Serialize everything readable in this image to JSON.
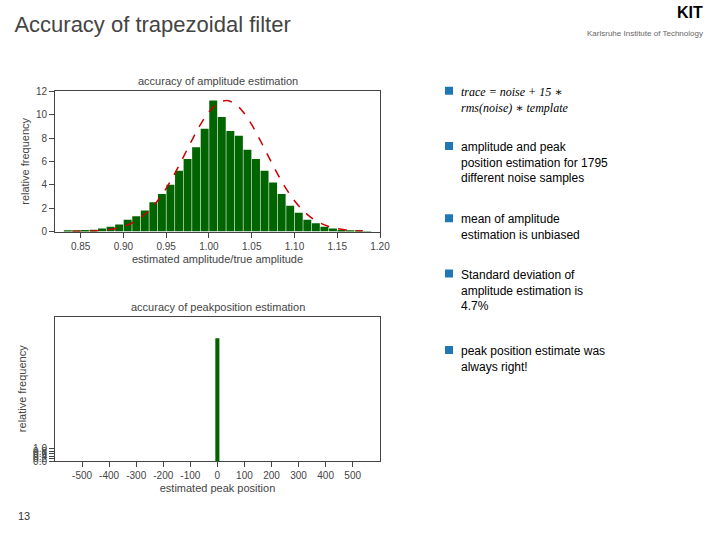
{
  "title": "Accuracy of trapezoidal filter",
  "annotations": [
    "trace = noise + 15 ∗\nrms(noise) ∗ template",
    "amplitude and peak\nposition estimation for 1795\ndifferent noise samples",
    "mean of amplitude\nestimation is unbiased",
    "Standard deviation of\namplitude estimation is\n4.7%",
    "peak position estimate was\nalways right!",
    "13",
    "KIT",
    "Karlsruhe Institute of Technology"
  ],
  "chart_data": [
    {
      "type": "bar",
      "title": "accuracy of amplitude estimation",
      "xlabel": "estimated amplitude/true amplitude",
      "ylabel": "relative frequency",
      "x": [
        0.835,
        0.845,
        0.855,
        0.865,
        0.875,
        0.885,
        0.895,
        0.905,
        0.915,
        0.925,
        0.935,
        0.945,
        0.955,
        0.965,
        0.975,
        0.985,
        0.995,
        1.005,
        1.015,
        1.025,
        1.035,
        1.045,
        1.055,
        1.065,
        1.075,
        1.085,
        1.095,
        1.105,
        1.115,
        1.125,
        1.135,
        1.145,
        1.155,
        1.165,
        1.175,
        1.185
      ],
      "series": [
        {
          "type": "bar",
          "color": "#006400",
          "values": [
            0.05,
            0.08,
            0.12,
            0.15,
            0.25,
            0.4,
            0.6,
            1.0,
            1.3,
            1.8,
            2.5,
            3.2,
            4.0,
            5.2,
            6.2,
            7.2,
            8.8,
            11.2,
            9.8,
            8.6,
            8.2,
            7.0,
            6.2,
            5.2,
            4.2,
            3.2,
            2.2,
            1.6,
            1.0,
            0.7,
            0.4,
            0.25,
            0.12,
            0.08,
            0.05,
            0.02
          ]
        },
        {
          "type": "line",
          "line_style": "dashed",
          "color": "#cc0000",
          "x": [
            0.84,
            0.85,
            0.86,
            0.87,
            0.88,
            0.89,
            0.9,
            0.91,
            0.92,
            0.93,
            0.94,
            0.95,
            0.96,
            0.97,
            0.98,
            0.99,
            1.0,
            1.01,
            1.02,
            1.03,
            1.04,
            1.05,
            1.06,
            1.07,
            1.08,
            1.09,
            1.1,
            1.11,
            1.12,
            1.13,
            1.14,
            1.15,
            1.16,
            1.17,
            1.18
          ],
          "values": [
            0.007,
            0.016,
            0.034,
            0.069,
            0.133,
            0.244,
            0.43,
            0.724,
            1.165,
            1.791,
            2.631,
            3.694,
            4.958,
            6.36,
            7.797,
            9.136,
            10.231,
            10.949,
            11.2,
            10.949,
            10.231,
            9.136,
            7.797,
            6.36,
            4.958,
            3.694,
            2.631,
            1.791,
            1.165,
            0.724,
            0.43,
            0.244,
            0.133,
            0.069,
            0.034
          ]
        }
      ],
      "xlim": [
        0.82,
        1.2
      ],
      "ylim": [
        0,
        12
      ],
      "xticks": [
        0.85,
        {
          "value": 0.9,
          "label": "0.90"
        },
        0.95,
        {
          "value": 1,
          "label": "1.00"
        },
        1.05,
        {
          "value": 1.1,
          "label": "1.10"
        },
        1.15,
        {
          "value": 1.2,
          "label": "1.20"
        }
      ],
      "yticks": [
        0,
        2,
        4,
        6,
        8,
        10,
        12
      ],
      "grid": false
    },
    {
      "type": "bar",
      "title": "accuracy of peakposition estimation",
      "xlabel": "estimated peak position",
      "ylabel": "relative frequency",
      "x": [
        0
      ],
      "values": [
        10.2
      ],
      "color": "#006400",
      "xlim": [
        -600,
        601
      ],
      "ylim": [
        0,
        12
      ],
      "xticks": [
        -500,
        -400,
        -300,
        -200,
        -100,
        0,
        100,
        200,
        300,
        400,
        500
      ],
      "yticks": [
        {
          "value": 0,
          "label": "0.0"
        },
        0.2,
        0.4,
        0.6,
        0.8,
        {
          "value": 1.0,
          "label": "1.0"
        }
      ],
      "grid": false
    }
  ]
}
